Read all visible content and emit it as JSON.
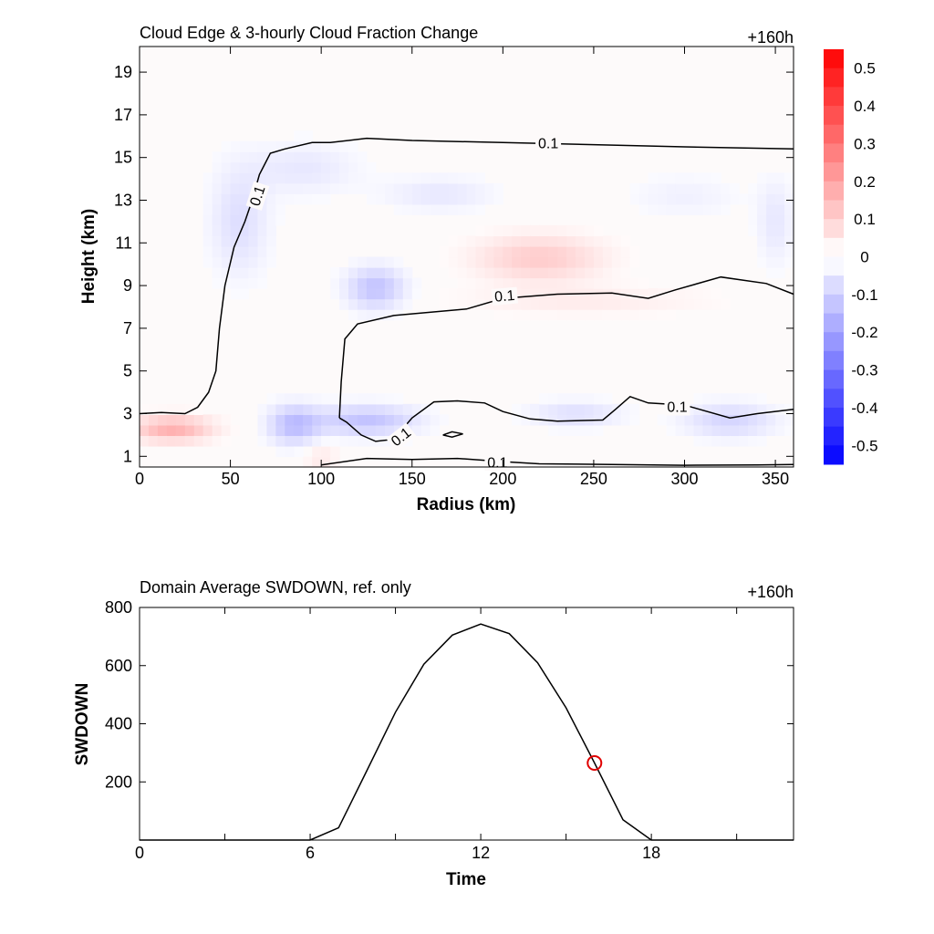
{
  "colors": {
    "positive": "#ff0000",
    "negative": "#0000ff",
    "neutral": "#ffffff",
    "contour": "#000000",
    "marker": "#e00000"
  },
  "chart_data": [
    {
      "type": "heatmap",
      "title": "Cloud Edge & 3-hourly Cloud Fraction Change",
      "time_label": "+160h",
      "xlabel": "Radius (km)",
      "ylabel": "Height (km)",
      "xlim": [
        0,
        360
      ],
      "ylim": [
        0.5,
        20.2
      ],
      "xticks": [
        "0",
        "50",
        "100",
        "150",
        "200",
        "250",
        "300",
        "350"
      ],
      "xtick_values": [
        0,
        50,
        100,
        150,
        200,
        250,
        300,
        350
      ],
      "yticks": [
        "1",
        "3",
        "5",
        "7",
        "9",
        "11",
        "13",
        "15",
        "17",
        "19"
      ],
      "ytick_values": [
        1,
        3,
        5,
        7,
        9,
        11,
        13,
        15,
        17,
        19
      ],
      "colorbar": {
        "min": -0.55,
        "max": 0.55,
        "labels": [
          "0.5",
          "0.4",
          "0.3",
          "0.2",
          "0.1",
          "0",
          "-0.1",
          "-0.2",
          "-0.3",
          "-0.4",
          "-0.5"
        ],
        "label_values": [
          0.5,
          0.4,
          0.3,
          0.2,
          0.1,
          0,
          -0.1,
          -0.2,
          -0.3,
          -0.4,
          -0.5
        ]
      },
      "anomalies": [
        {
          "r": 18,
          "z": 2.3,
          "sr": 22,
          "sz": 0.6,
          "v": 0.17
        },
        {
          "r": 55,
          "z": 12.0,
          "sr": 16,
          "sz": 2.5,
          "v": -0.07
        },
        {
          "r": 90,
          "z": 14.5,
          "sr": 30,
          "sz": 1.2,
          "v": -0.05
        },
        {
          "r": 85,
          "z": 2.5,
          "sr": 14,
          "sz": 0.9,
          "v": -0.14
        },
        {
          "r": 125,
          "z": 2.7,
          "sr": 28,
          "sz": 0.7,
          "v": -0.13
        },
        {
          "r": 130,
          "z": 8.9,
          "sr": 16,
          "sz": 1.0,
          "v": -0.13
        },
        {
          "r": 165,
          "z": 13.3,
          "sr": 30,
          "sz": 0.8,
          "v": -0.05
        },
        {
          "r": 220,
          "z": 10.3,
          "sr": 35,
          "sz": 1.1,
          "v": 0.11
        },
        {
          "r": 245,
          "z": 8.3,
          "sr": 70,
          "sz": 0.7,
          "v": 0.04
        },
        {
          "r": 240,
          "z": 3.0,
          "sr": 25,
          "sz": 0.6,
          "v": -0.07
        },
        {
          "r": 325,
          "z": 2.7,
          "sr": 25,
          "sz": 0.8,
          "v": -0.09
        },
        {
          "r": 350,
          "z": 12.0,
          "sr": 10,
          "sz": 2.0,
          "v": -0.05
        },
        {
          "r": 100,
          "z": 1.0,
          "sr": 10,
          "sz": 0.6,
          "v": 0.05
        },
        {
          "r": 300,
          "z": 13.2,
          "sr": 30,
          "sz": 1.0,
          "v": -0.03
        }
      ],
      "contours": [
        {
          "points": [
            [
              0,
              3.0
            ],
            [
              12,
              3.05
            ],
            [
              25,
              3.0
            ],
            [
              32,
              3.3
            ],
            [
              38,
              4.0
            ],
            [
              42,
              5.0
            ],
            [
              44,
              7.0
            ],
            [
              47,
              9.0
            ],
            [
              52,
              10.8
            ],
            [
              58,
              12.0
            ],
            [
              62,
              13.0
            ],
            [
              66,
              14.2
            ],
            [
              72,
              15.2
            ],
            [
              80,
              15.4
            ],
            [
              95,
              15.7
            ],
            [
              105,
              15.7
            ],
            [
              125,
              15.9
            ],
            [
              150,
              15.8
            ],
            [
              200,
              15.7
            ],
            [
              250,
              15.6
            ],
            [
              300,
              15.5
            ],
            [
              360,
              15.4
            ]
          ]
        },
        {
          "points": [
            [
              110,
              2.8
            ],
            [
              114,
              2.6
            ],
            [
              122,
              2.0
            ],
            [
              130,
              1.7
            ],
            [
              140,
              1.8
            ],
            [
              150,
              2.8
            ],
            [
              162,
              3.55
            ],
            [
              175,
              3.6
            ],
            [
              190,
              3.5
            ],
            [
              200,
              3.1
            ],
            [
              215,
              2.75
            ],
            [
              230,
              2.65
            ],
            [
              255,
              2.7
            ],
            [
              262,
              3.2
            ],
            [
              270,
              3.8
            ],
            [
              280,
              3.5
            ],
            [
              300,
              3.4
            ],
            [
              325,
              2.8
            ],
            [
              340,
              3.0
            ],
            [
              360,
              3.2
            ]
          ]
        },
        {
          "points": [
            [
              110,
              2.8
            ],
            [
              111,
              4.5
            ],
            [
              113,
              6.5
            ],
            [
              120,
              7.2
            ],
            [
              140,
              7.6
            ],
            [
              180,
              7.9
            ],
            [
              200,
              8.4
            ],
            [
              230,
              8.6
            ],
            [
              260,
              8.65
            ],
            [
              280,
              8.4
            ],
            [
              295,
              8.8
            ],
            [
              320,
              9.4
            ],
            [
              345,
              9.1
            ],
            [
              360,
              8.6
            ]
          ]
        },
        {
          "points": [
            [
              100,
              0.6
            ],
            [
              125,
              0.9
            ],
            [
              150,
              0.85
            ],
            [
              175,
              0.9
            ],
            [
              200,
              0.75
            ],
            [
              220,
              0.65
            ],
            [
              260,
              0.62
            ],
            [
              300,
              0.58
            ],
            [
              340,
              0.6
            ],
            [
              360,
              0.62
            ]
          ]
        },
        {
          "points": [
            [
              167,
              2.0
            ],
            [
              172,
              2.15
            ],
            [
              178,
              2.05
            ],
            [
              172,
              1.9
            ],
            [
              167,
              2.0
            ]
          ]
        }
      ],
      "contour_labels": [
        {
          "text": "0.1",
          "x": 65,
          "y": 13.2,
          "angle": -72
        },
        {
          "text": "0.1",
          "x": 225,
          "y": 15.65,
          "angle": 0
        },
        {
          "text": "0.1",
          "x": 201,
          "y": 8.5,
          "angle": -5
        },
        {
          "text": "0.1",
          "x": 296,
          "y": 3.3,
          "angle": 0
        },
        {
          "text": "0.1",
          "x": 144,
          "y": 1.9,
          "angle": -38
        },
        {
          "text": "0.1",
          "x": 197,
          "y": 0.7,
          "angle": 0
        }
      ]
    },
    {
      "type": "line",
      "title": "Domain Average SWDOWN, ref. only",
      "time_label": "+160h",
      "xlabel": "Time",
      "ylabel": "SWDOWN",
      "xlim": [
        0,
        23
      ],
      "ylim": [
        0,
        800
      ],
      "xticks": [
        "0",
        "6",
        "12",
        "18"
      ],
      "xtick_values": [
        0,
        6,
        12,
        18
      ],
      "yticks": [
        "200",
        "400",
        "600",
        "800"
      ],
      "ytick_values": [
        200,
        400,
        600,
        800
      ],
      "x": [
        0,
        1,
        2,
        3,
        4,
        5,
        6,
        7,
        8,
        9,
        10,
        11,
        12,
        13,
        14,
        15,
        16,
        17,
        18,
        19,
        20,
        21,
        22,
        23
      ],
      "values": [
        0,
        0,
        0,
        0,
        0,
        0,
        0,
        42,
        240,
        440,
        605,
        705,
        743,
        710,
        610,
        455,
        265,
        70,
        0,
        0,
        0,
        0,
        0,
        0
      ],
      "marker": {
        "x": 16,
        "y": 265
      }
    }
  ]
}
